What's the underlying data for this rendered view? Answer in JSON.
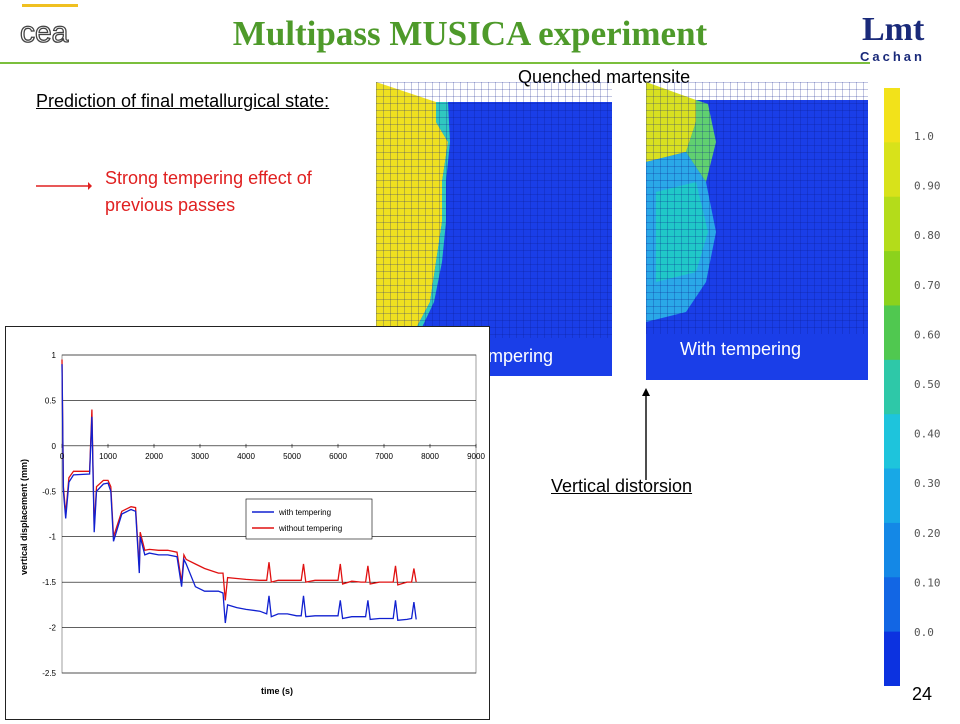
{
  "header": {
    "title": "Multipass MUSICA experiment",
    "left_logo_text": "cea",
    "right_logo_text": "Lmt",
    "right_logo_subtext": "Cachan"
  },
  "text": {
    "subtitle": "Prediction of final metallurgical state:",
    "effect": "Strong tempering effect of previous passes",
    "quenched_martensite": "Quenched martensite",
    "vertical_distorsion": "Vertical distorsion",
    "page_number": "24"
  },
  "panels": {
    "without_label": "Without tempering",
    "with_label": "With tempering"
  },
  "colorscale": {
    "labels": [
      "1.0",
      "0.90",
      "0.80",
      "0.70",
      "0.60",
      "0.50",
      "0.40",
      "0.30",
      "0.20",
      "0.10",
      "0.0"
    ],
    "colors": [
      "#f2e21a",
      "#d8e21a",
      "#b4dc1a",
      "#8cd21c",
      "#50c850",
      "#2ec8a8",
      "#1ec4dc",
      "#18a8e6",
      "#1488e6",
      "#1266e4",
      "#0c32e0"
    ]
  },
  "chart_data": {
    "type": "line",
    "xlabel": "time (s)",
    "ylabel": "vertical displacement (mm)",
    "xlim": [
      0,
      9000
    ],
    "ylim": [
      -2.5,
      1
    ],
    "xticks": [
      "0",
      "1000",
      "2000",
      "3000",
      "4000",
      "5000",
      "6000",
      "7000",
      "8000",
      "9000"
    ],
    "yticks": [
      "1",
      "0.5",
      "0",
      "-0.5",
      "-1",
      "-1.5",
      "-2",
      "-2.5"
    ],
    "legend_position": "center-right",
    "series": [
      {
        "name": "with tempering",
        "color": "#1020d0",
        "x": [
          0,
          30,
          80,
          150,
          250,
          600,
          650,
          700,
          750,
          900,
          1000,
          1060,
          1120,
          1300,
          1500,
          1600,
          1680,
          1700,
          1800,
          1900,
          2100,
          2300,
          2500,
          2600,
          2650,
          2700,
          2900,
          3100,
          3400,
          3500,
          3550,
          3600,
          3800,
          4000,
          4300,
          4450,
          4500,
          4550,
          4700,
          4900,
          5100,
          5200,
          5250,
          5300,
          5500,
          5700,
          6000,
          6050,
          6100,
          6300,
          6500,
          6600,
          6650,
          6700,
          6900,
          7100,
          7200,
          7250,
          7300,
          7500,
          7600,
          7650,
          7700
        ],
        "y": [
          0.9,
          -0.5,
          -0.8,
          -0.4,
          -0.32,
          -0.31,
          0.32,
          -0.95,
          -0.5,
          -0.42,
          -0.41,
          -0.5,
          -1.05,
          -0.75,
          -0.7,
          -0.72,
          -1.4,
          -1.0,
          -1.2,
          -1.18,
          -1.2,
          -1.2,
          -1.22,
          -1.55,
          -1.25,
          -1.3,
          -1.55,
          -1.6,
          -1.6,
          -1.62,
          -1.95,
          -1.75,
          -1.78,
          -1.8,
          -1.82,
          -1.85,
          -1.65,
          -1.88,
          -1.85,
          -1.85,
          -1.87,
          -1.87,
          -1.65,
          -1.88,
          -1.87,
          -1.87,
          -1.87,
          -1.7,
          -1.9,
          -1.88,
          -1.88,
          -1.88,
          -1.7,
          -1.91,
          -1.9,
          -1.9,
          -1.9,
          -1.7,
          -1.92,
          -1.91,
          -1.9,
          -1.72,
          -1.91
        ]
      },
      {
        "name": "without tempering",
        "color": "#e01010",
        "x": [
          0,
          30,
          80,
          150,
          250,
          600,
          650,
          700,
          750,
          900,
          1000,
          1060,
          1120,
          1300,
          1500,
          1600,
          1680,
          1700,
          1800,
          1900,
          2100,
          2300,
          2500,
          2600,
          2650,
          2700,
          2900,
          3100,
          3400,
          3500,
          3550,
          3600,
          3800,
          4000,
          4300,
          4450,
          4500,
          4550,
          4700,
          4900,
          5100,
          5200,
          5250,
          5300,
          5500,
          5700,
          6000,
          6050,
          6100,
          6300,
          6500,
          6600,
          6650,
          6700,
          6900,
          7100,
          7200,
          7250,
          7300,
          7500,
          7600,
          7650,
          7700
        ],
        "y": [
          0.95,
          -0.45,
          -0.75,
          -0.35,
          -0.28,
          -0.28,
          0.4,
          -0.9,
          -0.45,
          -0.38,
          -0.38,
          -0.45,
          -1.0,
          -0.72,
          -0.67,
          -0.68,
          -1.35,
          -0.95,
          -1.15,
          -1.14,
          -1.15,
          -1.15,
          -1.17,
          -1.5,
          -1.2,
          -1.25,
          -1.3,
          -1.35,
          -1.4,
          -1.4,
          -1.7,
          -1.45,
          -1.46,
          -1.47,
          -1.48,
          -1.48,
          -1.28,
          -1.5,
          -1.48,
          -1.48,
          -1.48,
          -1.48,
          -1.3,
          -1.5,
          -1.48,
          -1.48,
          -1.48,
          -1.3,
          -1.52,
          -1.49,
          -1.5,
          -1.5,
          -1.32,
          -1.52,
          -1.5,
          -1.5,
          -1.5,
          -1.32,
          -1.53,
          -1.5,
          -1.5,
          -1.35,
          -1.5
        ]
      }
    ]
  }
}
